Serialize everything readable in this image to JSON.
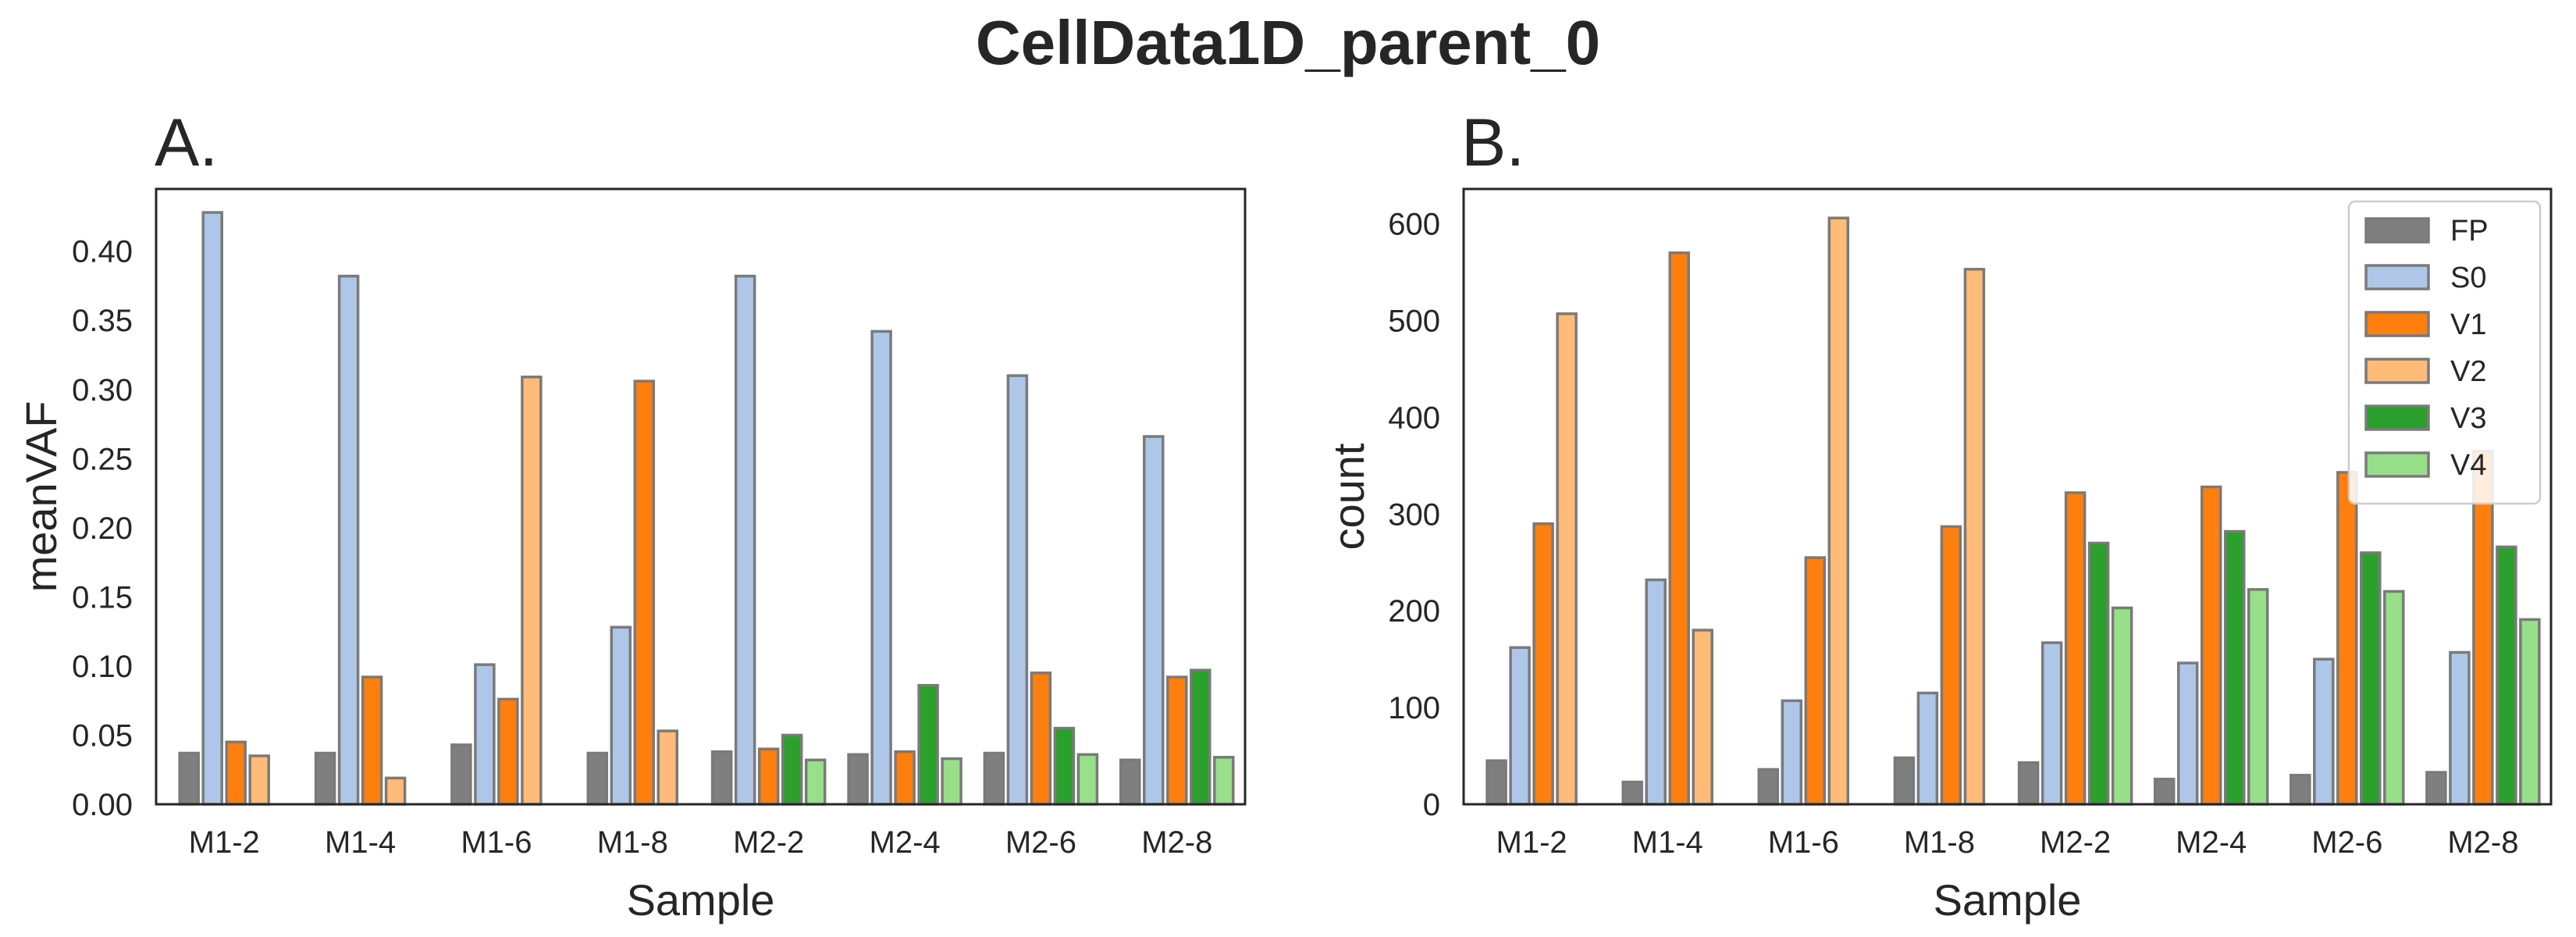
{
  "figure": {
    "suptitle": "CellData1D_parent_0"
  },
  "colors": {
    "FP": "#7f7f7f",
    "S0": "#aec7e8",
    "V1": "#ff7f0e",
    "V2": "#ffbb78",
    "V3": "#2ca02c",
    "V4": "#98df8a"
  },
  "chart_data": [
    {
      "type": "bar",
      "title": "A.",
      "xlabel": "Sample",
      "ylabel": "meanVAF",
      "categories": [
        "M1-2",
        "M1-4",
        "M1-6",
        "M1-8",
        "M2-2",
        "M2-4",
        "M2-6",
        "M2-8"
      ],
      "ylim": [
        0,
        0.445
      ],
      "yticks": [
        0.0,
        0.05,
        0.1,
        0.15,
        0.2,
        0.25,
        0.3,
        0.35,
        0.4
      ],
      "ytick_labels": [
        "0.00",
        "0.05",
        "0.10",
        "0.15",
        "0.20",
        "0.25",
        "0.30",
        "0.35",
        "0.40"
      ],
      "legend": null,
      "series": [
        {
          "name": "FP",
          "values": [
            0.037,
            0.037,
            0.043,
            0.037,
            0.038,
            0.036,
            0.037,
            0.032
          ]
        },
        {
          "name": "S0",
          "values": [
            0.428,
            0.382,
            0.101,
            0.128,
            0.382,
            0.342,
            0.31,
            0.266
          ]
        },
        {
          "name": "V1",
          "values": [
            0.045,
            0.092,
            0.076,
            0.306,
            0.04,
            0.038,
            0.095,
            0.092
          ]
        },
        {
          "name": "V2",
          "values": [
            0.035,
            0.019,
            0.309,
            0.053,
            null,
            null,
            null,
            null
          ]
        },
        {
          "name": "V3",
          "values": [
            null,
            null,
            null,
            null,
            0.05,
            0.086,
            0.055,
            0.097
          ]
        },
        {
          "name": "V4",
          "values": [
            null,
            null,
            null,
            null,
            0.032,
            0.033,
            0.036,
            0.034
          ]
        }
      ]
    },
    {
      "type": "bar",
      "title": "B.",
      "xlabel": "Sample",
      "ylabel": "count",
      "categories": [
        "M1-2",
        "M1-4",
        "M1-6",
        "M1-8",
        "M2-2",
        "M2-4",
        "M2-6",
        "M2-8"
      ],
      "ylim": [
        0,
        636
      ],
      "yticks": [
        0,
        100,
        200,
        300,
        400,
        500,
        600
      ],
      "ytick_labels": [
        "0",
        "100",
        "200",
        "300",
        "400",
        "500",
        "600"
      ],
      "legend": "top-right",
      "series": [
        {
          "name": "FP",
          "values": [
            45,
            23,
            36,
            48,
            43,
            26,
            30,
            33
          ]
        },
        {
          "name": "S0",
          "values": [
            162,
            232,
            107,
            115,
            167,
            146,
            150,
            157
          ]
        },
        {
          "name": "V1",
          "values": [
            290,
            570,
            255,
            287,
            322,
            328,
            343,
            365
          ]
        },
        {
          "name": "V2",
          "values": [
            507,
            180,
            606,
            553,
            null,
            null,
            null,
            null
          ]
        },
        {
          "name": "V3",
          "values": [
            null,
            null,
            null,
            null,
            270,
            282,
            260,
            266
          ]
        },
        {
          "name": "V4",
          "values": [
            null,
            null,
            null,
            null,
            203,
            222,
            220,
            191
          ]
        }
      ]
    }
  ]
}
